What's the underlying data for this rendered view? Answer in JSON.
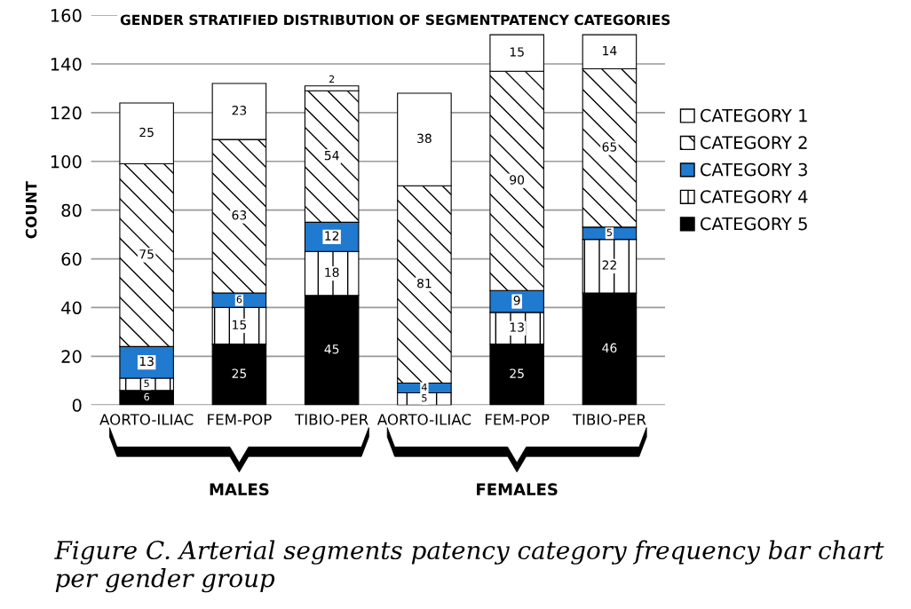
{
  "chart_data": {
    "type": "bar",
    "stacked": true,
    "title": "GENDER STRATIFIED DISTRIBUTION OF SEGMENTPATENCY CATEGORIES",
    "ylabel": "COUNT",
    "categories": [
      "AORTO-ILIAC",
      "FEM-POP",
      "TIBIO-PER",
      "AORTO-ILIAC",
      "FEM-POP",
      "TIBIO-PER"
    ],
    "series": [
      {
        "name": "CATEGORY 5",
        "color": "#000000",
        "values": [
          6,
          25,
          45,
          0,
          25,
          46
        ],
        "value_labels": [
          "6",
          "25",
          "45",
          null,
          "25",
          "46"
        ]
      },
      {
        "name": "CATEGORY 4",
        "color": "#000000",
        "values": [
          5,
          15,
          18,
          5,
          13,
          22
        ],
        "value_labels": [
          "5",
          "15",
          "18",
          "5",
          "13",
          "22"
        ]
      },
      {
        "name": "CATEGORY 3",
        "color": "#1f7ad0",
        "values": [
          13,
          6,
          12,
          4,
          9,
          5
        ],
        "value_labels": [
          "13",
          "6",
          "12",
          "4",
          "9",
          "5"
        ]
      },
      {
        "name": "CATEGORY 2",
        "color": "#000000",
        "values": [
          75,
          63,
          54,
          81,
          90,
          65
        ],
        "value_labels": [
          "75",
          "63",
          "54",
          "81",
          "90",
          "65"
        ]
      },
      {
        "name": "CATEGORY 1",
        "color": "#ffffff",
        "values": [
          25,
          23,
          2,
          38,
          15,
          14
        ],
        "value_labels": [
          "25",
          "23",
          "2",
          "38",
          "15",
          "14"
        ]
      }
    ],
    "ylim": [
      0,
      160
    ],
    "yticks": [
      0,
      20,
      40,
      60,
      80,
      100,
      120,
      140,
      160
    ],
    "grid": "y",
    "legend": "right",
    "annotations": [
      "MALES",
      "FEMALES",
      "Figure C. Arterial segments patency category frequency bar chart per gender group"
    ]
  }
}
